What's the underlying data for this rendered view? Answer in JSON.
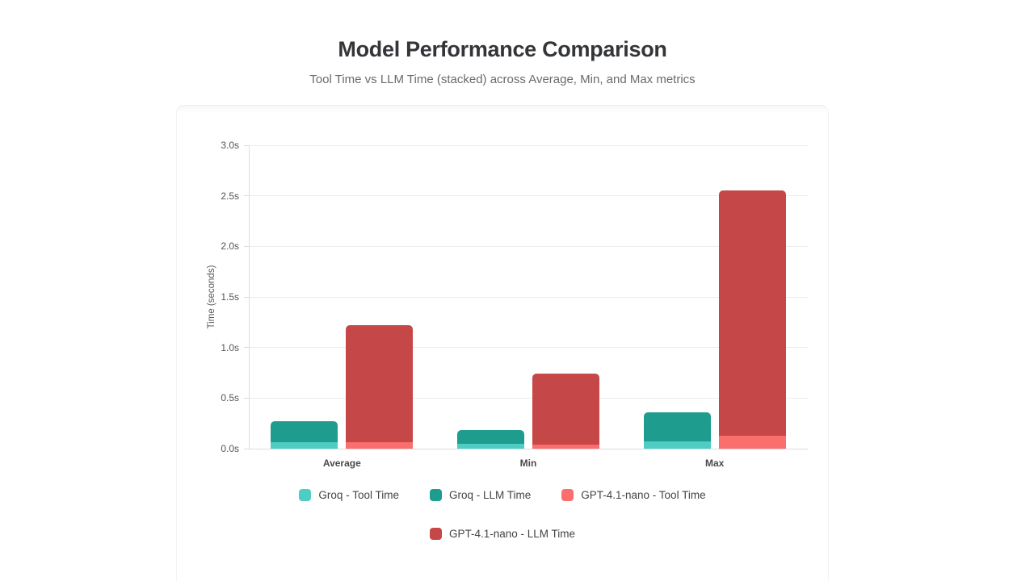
{
  "header": {
    "title": "Model Performance Comparison",
    "subtitle": "Tool Time vs LLM Time (stacked) across Average, Min, and Max metrics"
  },
  "chart_data": {
    "type": "bar",
    "stacked": true,
    "title": "Model Performance Comparison",
    "subtitle": "Tool Time vs LLM Time (stacked) across Average, Min, and Max metrics",
    "categories": [
      "Average",
      "Min",
      "Max"
    ],
    "series": [
      {
        "name": "Groq - Tool Time",
        "stack": "Groq",
        "color": "#4ecdc4",
        "values": [
          0.06,
          0.05,
          0.07
        ]
      },
      {
        "name": "Groq - LLM Time",
        "stack": "Groq",
        "color": "#1e9c8e",
        "values": [
          0.21,
          0.13,
          0.29
        ]
      },
      {
        "name": "GPT-4.1-nano - Tool Time",
        "stack": "GPT-4.1-nano",
        "color": "#fa6e6e",
        "values": [
          0.06,
          0.04,
          0.13
        ]
      },
      {
        "name": "GPT-4.1-nano - LLM Time",
        "stack": "GPT-4.1-nano",
        "color": "#c64747",
        "values": [
          1.16,
          0.7,
          2.42
        ]
      }
    ],
    "stack_totals": {
      "Groq": [
        0.27,
        0.18,
        0.36
      ],
      "GPT-4.1-nano": [
        1.22,
        0.74,
        2.55
      ]
    },
    "xlabel": "",
    "ylabel": "Time (seconds)",
    "ylim": [
      0,
      3
    ],
    "ytick_step": 0.5,
    "ytick_suffix": "s",
    "ytick_labels": [
      "0.0s",
      "0.5s",
      "1.0s",
      "1.5s",
      "2.0s",
      "2.5s",
      "3.0s"
    ],
    "grid": true,
    "legend_position": "bottom",
    "legend_rows": [
      [
        0,
        1,
        2
      ],
      [
        3
      ]
    ]
  }
}
